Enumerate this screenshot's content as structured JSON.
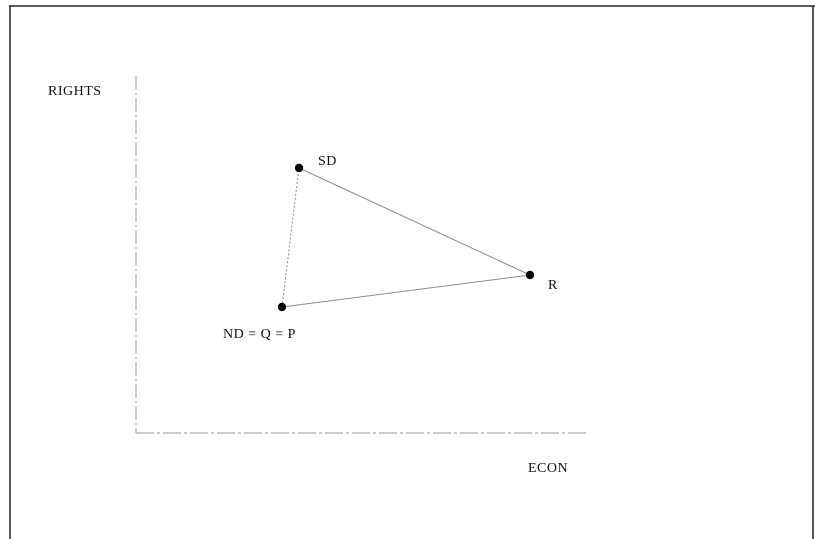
{
  "axes": {
    "y_label": "RIGHTS",
    "x_label": "ECON"
  },
  "points": [
    {
      "id": "sd",
      "label": "SD"
    },
    {
      "id": "r",
      "label": "R"
    },
    {
      "id": "ndqp",
      "label": "ND = Q = P"
    }
  ],
  "colors": {
    "frame": "#222222",
    "axis": "#9a9a9a",
    "edge": "#8c8c8c",
    "point": "#000000",
    "text": "#111111"
  }
}
